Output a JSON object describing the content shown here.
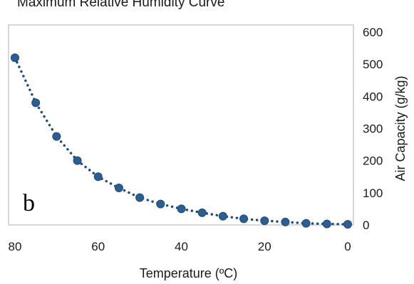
{
  "chart_data": {
    "type": "scatter",
    "title": "Maximum Relative Humidity Curve",
    "xlabel": "Temperature (ºC)",
    "ylabel": "Air Capacity (g/kg)",
    "panel_label": "b",
    "x_reversed": true,
    "xlim": [
      0,
      80
    ],
    "ylim": [
      0,
      600
    ],
    "xticks": [
      80,
      60,
      40,
      20,
      0
    ],
    "yticks": [
      0,
      100,
      200,
      300,
      400,
      500,
      600
    ],
    "y_axis_side": "right",
    "grid": false,
    "line_style": "dotted",
    "series": [
      {
        "x": [
          80,
          75,
          70,
          65,
          60,
          55,
          50,
          45,
          40,
          35,
          30,
          25,
          20,
          15,
          10,
          5,
          0
        ],
        "values": [
          520,
          380,
          275,
          200,
          150,
          115,
          85,
          65,
          50,
          38,
          27,
          19,
          13,
          9,
          5,
          3,
          2
        ]
      }
    ],
    "colors": {
      "marker": "#2e5e8f",
      "marker_edge": "#1f4a78",
      "line": "#1f4e79",
      "frame": "#bfbfbf"
    }
  }
}
